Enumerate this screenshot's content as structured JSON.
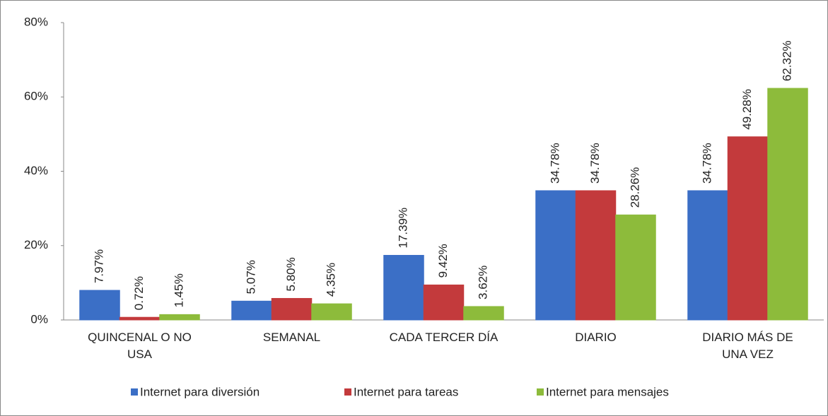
{
  "chart_data": {
    "type": "bar",
    "categories": [
      "QUINCENAL O NO USA",
      "SEMANAL",
      "CADA TERCER DÍA",
      "DIARIO",
      "DIARIO MÁS DE UNA VEZ"
    ],
    "series": [
      {
        "name": "Internet para diversión",
        "color": "#3b6fc6",
        "values": [
          7.97,
          5.07,
          17.39,
          34.78,
          34.78
        ],
        "value_labels": [
          "7.97%",
          "5.07%",
          "17.39%",
          "34.78%",
          "34.78%"
        ]
      },
      {
        "name": "Internet para tareas",
        "color": "#c33a3c",
        "values": [
          0.72,
          5.8,
          9.42,
          34.78,
          49.28
        ],
        "value_labels": [
          "0.72%",
          "5.80%",
          "9.42%",
          "34.78%",
          "49.28%"
        ]
      },
      {
        "name": "Internet para mensajes",
        "color": "#8dbb3b",
        "values": [
          1.45,
          4.35,
          3.62,
          28.26,
          62.32
        ],
        "value_labels": [
          "1.45%",
          "4.35%",
          "3.62%",
          "28.26%",
          "62.32%"
        ]
      }
    ],
    "ylim": [
      0,
      80
    ],
    "yticks": [
      {
        "value": 0,
        "label": "0%"
      },
      {
        "value": 20,
        "label": "20%"
      },
      {
        "value": 40,
        "label": "40%"
      },
      {
        "value": 60,
        "label": "60%"
      },
      {
        "value": 80,
        "label": "80%"
      }
    ],
    "legend": "bottom"
  }
}
